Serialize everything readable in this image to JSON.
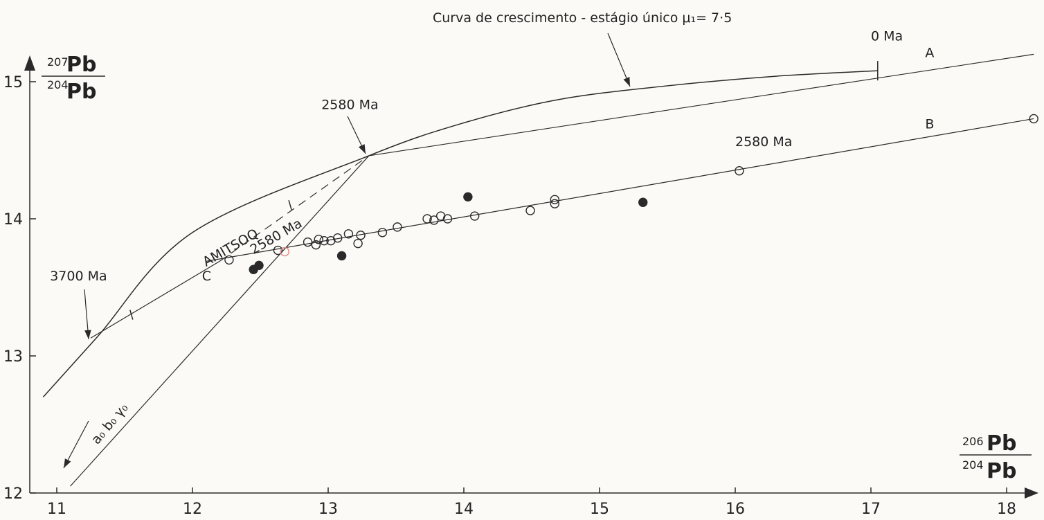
{
  "chart_data": {
    "type": "scatter",
    "title": "Curva de crescimento - estágio único μ₁= 7·5",
    "xlabel": {
      "num_sup": "206",
      "num": "Pb",
      "den_sup": "204",
      "den": "Pb"
    },
    "ylabel": {
      "num_sup": "207",
      "num": "Pb",
      "den_sup": "204",
      "den": "Pb"
    },
    "xlim": [
      11,
      18
    ],
    "ylim": [
      12,
      15
    ],
    "x_ticks": [
      "11",
      "12",
      "13",
      "14",
      "15",
      "16",
      "17",
      "18"
    ],
    "y_ticks": [
      "12",
      "13",
      "14",
      "15"
    ],
    "growth_curve": {
      "x": [
        10.9,
        11.3,
        12.0,
        13.3,
        14.0,
        14.7,
        15.5,
        16.3,
        17.05
      ],
      "y": [
        12.7,
        13.14,
        13.9,
        14.46,
        14.7,
        14.87,
        14.97,
        15.04,
        15.08
      ]
    },
    "lines": [
      {
        "name": "A",
        "x": [
          13.3,
          18.2
        ],
        "y": [
          14.46,
          15.2
        ]
      },
      {
        "name": "B",
        "x": [
          12.1,
          18.2
        ],
        "y": [
          13.69,
          14.73
        ]
      },
      {
        "name": "a0b0g0",
        "x": [
          11.1,
          13.3
        ],
        "y": [
          12.05,
          14.46
        ]
      },
      {
        "name": "C",
        "x": [
          11.25,
          12.2
        ],
        "y": [
          13.13,
          13.69
        ],
        "x2": [
          12.2,
          13.3
        ],
        "y2": [
          13.69,
          14.46
        ]
      }
    ],
    "annotations": [
      {
        "text": "2580 Ma",
        "x": 12.95,
        "y": 14.8
      },
      {
        "text": "3700 Ma",
        "x": 10.95,
        "y": 13.55
      },
      {
        "text": "0 Ma",
        "x": 17.0,
        "y": 15.3
      },
      {
        "text": "A",
        "x": 17.4,
        "y": 15.18
      },
      {
        "text": "B",
        "x": 17.4,
        "y": 14.66
      },
      {
        "text": "2580 Ma",
        "x": 16.0,
        "y": 14.53
      },
      {
        "text": "AMITSOQ",
        "x": 12.1,
        "y": 13.65
      },
      {
        "text": "2580 Ma",
        "x": 12.45,
        "y": 13.74
      },
      {
        "text": "C",
        "x": 12.07,
        "y": 13.55
      },
      {
        "text": "a₀ b₀ γ₀",
        "x": 11.3,
        "y": 12.35
      }
    ],
    "series": [
      {
        "name": "open",
        "x": [
          12.27,
          12.63,
          12.85,
          12.91,
          12.93,
          12.97,
          13.02,
          13.07,
          13.15,
          13.22,
          13.24,
          13.4,
          13.51,
          13.73,
          13.78,
          13.83,
          13.88,
          14.08,
          14.49,
          14.67,
          14.67,
          16.03,
          18.2
        ],
        "y": [
          13.7,
          13.77,
          13.83,
          13.81,
          13.85,
          13.84,
          13.84,
          13.86,
          13.89,
          13.82,
          13.88,
          13.9,
          13.94,
          14.0,
          13.99,
          14.02,
          14.0,
          14.02,
          14.06,
          14.11,
          14.14,
          14.35,
          14.73
        ]
      },
      {
        "name": "filled",
        "x": [
          12.45,
          12.49,
          13.1,
          14.03,
          15.32
        ],
        "y": [
          13.63,
          13.66,
          13.73,
          14.16,
          14.12
        ]
      },
      {
        "name": "red",
        "x": [
          12.68
        ],
        "y": [
          13.76
        ]
      }
    ]
  }
}
